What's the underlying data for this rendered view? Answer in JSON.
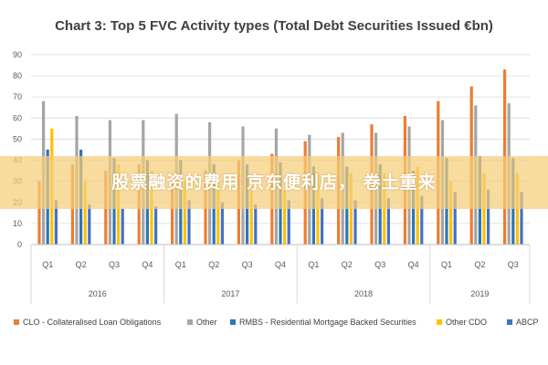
{
  "chart_data": {
    "type": "bar",
    "title": "Chart 3: Top 5 FVC Activity types (Total Debt Securities Issued €bn)",
    "xlabel": "",
    "ylabel": "",
    "ylim": [
      0,
      90
    ],
    "yticks": [
      0,
      10,
      20,
      30,
      40,
      50,
      60,
      70,
      80,
      90
    ],
    "grid": true,
    "legend_position": "bottom",
    "categories": [
      "Q1",
      "Q2",
      "Q3",
      "Q4",
      "Q1",
      "Q2",
      "Q3",
      "Q4",
      "Q1",
      "Q2",
      "Q3",
      "Q4",
      "Q1",
      "Q2",
      "Q3"
    ],
    "groups": [
      {
        "label": "2016",
        "span": 4
      },
      {
        "label": "2017",
        "span": 4
      },
      {
        "label": "2018",
        "span": 4
      },
      {
        "label": "2019",
        "span": 3
      }
    ],
    "series": [
      {
        "name": "CLO - Collateralised Loan Obligations",
        "color": "#ED7D31",
        "values": [
          30,
          38,
          35,
          38,
          33,
          35,
          40,
          43,
          49,
          51,
          57,
          61,
          68,
          75,
          83
        ]
      },
      {
        "name": "Other",
        "color": "#A5A5A5",
        "values": [
          68,
          61,
          59,
          59,
          62,
          58,
          56,
          55,
          52,
          53,
          53,
          56,
          59,
          66,
          67
        ]
      },
      {
        "name": "RMBS - Residential Mortgage Backed Securities",
        "color": "#2E75B6",
        "values": [
          45,
          45,
          41,
          40,
          40,
          38,
          38,
          39,
          37,
          37,
          38,
          35,
          41,
          42,
          41
        ]
      },
      {
        "name": "Other CDO",
        "color": "#FFC000",
        "values": [
          55,
          30,
          38,
          35,
          30,
          30,
          33,
          26,
          34,
          34,
          34,
          37,
          30,
          34,
          34
        ]
      },
      {
        "name": "ABCP",
        "color": "#4472C4",
        "values": [
          21,
          19,
          17,
          18,
          21,
          20,
          19,
          21,
          22,
          21,
          22,
          23,
          25,
          26,
          25
        ]
      }
    ]
  },
  "overlay": {
    "text": "股票融资的费用 京东便利店， 卷土重来"
  }
}
